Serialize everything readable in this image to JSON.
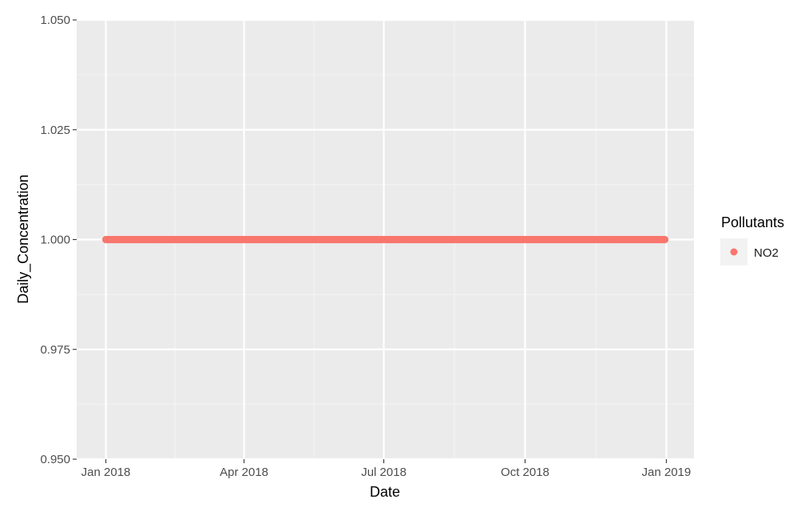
{
  "chart_data": {
    "type": "scatter",
    "title": "",
    "xlabel": "Date",
    "ylabel": "Daily_Concentration",
    "x_range": [
      "2017-12-13",
      "2019-01-19"
    ],
    "ylim": [
      0.95,
      1.05
    ],
    "x_ticks": [
      {
        "date": "2018-01-01",
        "label": "Jan 2018"
      },
      {
        "date": "2018-04-01",
        "label": "Apr 2018"
      },
      {
        "date": "2018-07-01",
        "label": "Jul 2018"
      },
      {
        "date": "2018-10-01",
        "label": "Oct 2018"
      },
      {
        "date": "2019-01-01",
        "label": "Jan 2019"
      }
    ],
    "y_ticks": [
      {
        "value": 0.95,
        "label": "0.950"
      },
      {
        "value": 0.975,
        "label": "0.975"
      },
      {
        "value": 1.0,
        "label": "1.000"
      },
      {
        "value": 1.025,
        "label": "1.025"
      },
      {
        "value": 1.05,
        "label": "1.050"
      }
    ],
    "grid": true,
    "legend": {
      "title": "Pollutants",
      "position": "right"
    },
    "series": [
      {
        "name": "NO2",
        "color": "#F8766D",
        "x_start": "2018-01-01",
        "x_end": "2018-12-31",
        "frequency": "daily",
        "y": 1.0
      }
    ]
  }
}
